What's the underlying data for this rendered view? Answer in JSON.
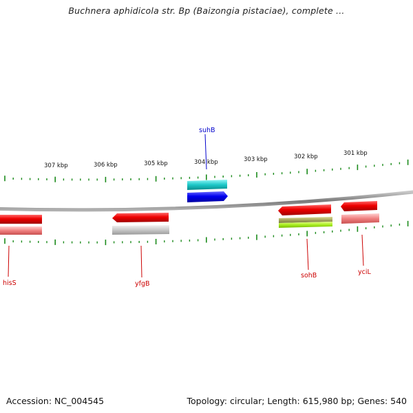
{
  "title": "Buchnera aphidicola str. Bp (Baizongia pistaciae), complete ...",
  "footer": {
    "accession": "Accession: NC_004545",
    "summary": "Topology: circular; Length: 615,980 bp; Genes: 540"
  },
  "colors": {
    "backbone": "#8a8a8a",
    "tick": "#1a8a1a",
    "label_red": "#cc0000",
    "label_blue": "#0000cc"
  },
  "tick_labels": [
    "307 kbp",
    "306 kbp",
    "305 kbp",
    "304 kbp",
    "303 kbp",
    "302 kbp",
    "301 kbp"
  ],
  "genes": [
    {
      "name": "suhB",
      "color": "#0000cc"
    },
    {
      "name": "hisS",
      "color": "#cc0000"
    },
    {
      "name": "yfgB",
      "color": "#cc0000"
    },
    {
      "name": "sohB",
      "color": "#cc0000"
    },
    {
      "name": "yciL",
      "color": "#cc0000"
    }
  ]
}
